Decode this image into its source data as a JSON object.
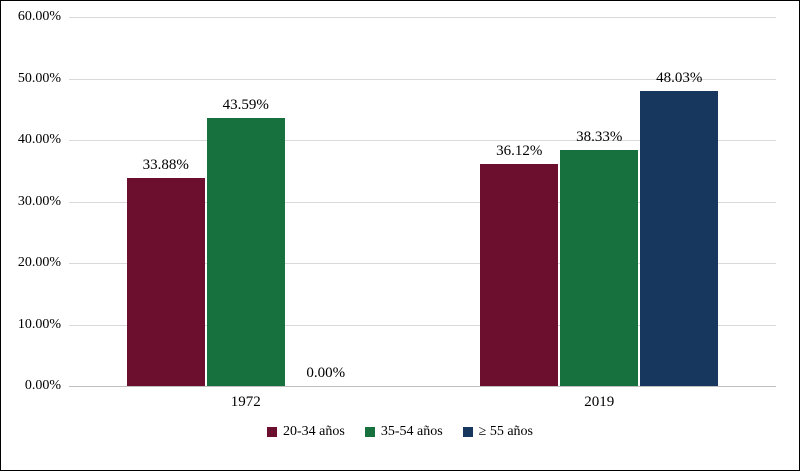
{
  "chart_data": {
    "type": "bar",
    "title": "",
    "xlabel": "",
    "ylabel": "",
    "categories": [
      "1972",
      "2019"
    ],
    "series": [
      {
        "name": "20-34 años",
        "color": "#6C0F2F",
        "values": [
          33.88,
          36.12
        ]
      },
      {
        "name": "35-54 años",
        "color": "#17713F",
        "values": [
          43.59,
          38.33
        ]
      },
      {
        "name": "≥ 55 años",
        "color": "#17375E",
        "values": [
          0.0,
          48.03
        ]
      }
    ],
    "value_labels": [
      [
        "33.88%",
        "36.12%"
      ],
      [
        "43.59%",
        "38.33%"
      ],
      [
        "0.00%",
        "48.03%"
      ]
    ],
    "ylim": [
      0,
      60
    ],
    "ytick_step": 10,
    "ytick_labels": [
      "0.00%",
      "10.00%",
      "20.00%",
      "30.00%",
      "40.00%",
      "50.00%",
      "60.00%"
    ],
    "grid": true,
    "legend_position": "bottom"
  }
}
